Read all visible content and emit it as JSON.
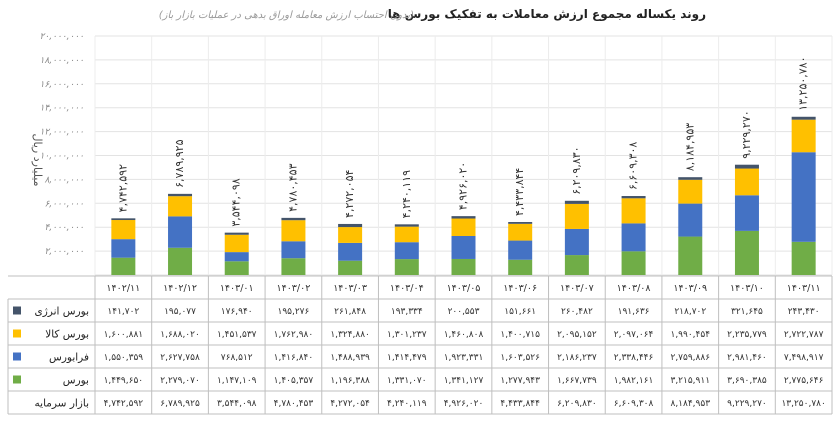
{
  "chart_data": {
    "type": "bar",
    "stacked": true,
    "title": "روند یکساله مجموع ارزش معاملات به تفکیک بورس ها",
    "subtitle": "(بدون احتساب ارزش معامله اوراق بدهی در عملیات بازار باز)",
    "ylabel": "میلیارد ریال",
    "xlabel": "",
    "ylim": [
      0,
      20000000
    ],
    "yticks": [
      0,
      2000000,
      4000000,
      6000000,
      8000000,
      10000000,
      12000000,
      14000000,
      16000000,
      18000000,
      20000000
    ],
    "ytick_labels": [
      "-",
      "۲,۰۰۰,۰۰۰",
      "۴,۰۰۰,۰۰۰",
      "۶,۰۰۰,۰۰۰",
      "۸,۰۰۰,۰۰۰",
      "۱۰,۰۰۰,۰۰۰",
      "۱۲,۰۰۰,۰۰۰",
      "۱۴,۰۰۰,۰۰۰",
      "۱۶,۰۰۰,۰۰۰",
      "۱۸,۰۰۰,۰۰۰",
      "۲۰,۰۰۰,۰۰۰"
    ],
    "grid": true,
    "legend_position": "table-left",
    "categories": [
      "۱۴۰۲/۱۱",
      "۱۴۰۲/۱۲",
      "۱۴۰۳/۰۱",
      "۱۴۰۳/۰۲",
      "۱۴۰۳/۰۳",
      "۱۴۰۳/۰۴",
      "۱۴۰۳/۰۵",
      "۱۴۰۳/۰۶",
      "۱۴۰۳/۰۷",
      "۱۴۰۳/۰۸",
      "۱۴۰۳/۰۹",
      "۱۴۰۳/۱۰",
      "۱۴۰۳/۱۱"
    ],
    "series": [
      {
        "name": "بورس",
        "color": "#70ad47",
        "values": [
          1449650,
          2279070,
          1147109,
          1405357,
          1196388,
          1331070,
          1341127,
          1277943,
          1667739,
          1982161,
          3215911,
          3690385,
          2775646
        ],
        "labels": [
          "۱,۴۴۹,۶۵۰",
          "۲,۲۷۹,۰۷۰",
          "۱,۱۴۷,۱۰۹",
          "۱,۴۰۵,۳۵۷",
          "۱,۱۹۶,۳۸۸",
          "۱,۳۳۱,۰۷۰",
          "۱,۳۴۱,۱۲۷",
          "۱,۲۷۷,۹۴۳",
          "۱,۶۶۷,۷۳۹",
          "۱,۹۸۲,۱۶۱",
          "۳,۲۱۵,۹۱۱",
          "۳,۶۹۰,۳۸۵",
          "۲,۷۷۵,۶۴۶"
        ]
      },
      {
        "name": "فرابورس",
        "color": "#4472c4",
        "values": [
          1550359,
          2627758,
          768512,
          1416840,
          1488939,
          1414479,
          1923331,
          1603526,
          2186237,
          2338446,
          2759886,
          2981460,
          7498917
        ],
        "labels": [
          "۱,۵۵۰,۳۵۹",
          "۲,۶۲۷,۷۵۸",
          "۷۶۸,۵۱۲",
          "۱,۴۱۶,۸۴۰",
          "۱,۴۸۸,۹۳۹",
          "۱,۴۱۴,۴۷۹",
          "۱,۹۲۳,۳۳۱",
          "۱,۶۰۳,۵۲۶",
          "۲,۱۸۶,۲۳۷",
          "۲,۳۳۸,۴۴۶",
          "۲,۷۵۹,۸۸۶",
          "۲,۹۸۱,۴۶۰",
          "۷,۴۹۸,۹۱۷"
        ]
      },
      {
        "name": "بورس کالا",
        "color": "#ffc000",
        "values": [
          1600881,
          1688020,
          1451537,
          1762980,
          1324880,
          1301237,
          1460808,
          1400715,
          2095152,
          2097064,
          1990454,
          2235779,
          2722787
        ],
        "labels": [
          "۱,۶۰۰,۸۸۱",
          "۱,۶۸۸,۰۲۰",
          "۱,۴۵۱,۵۳۷",
          "۱,۷۶۲,۹۸۰",
          "۱,۳۲۴,۸۸۰",
          "۱,۳۰۱,۲۳۷",
          "۱,۴۶۰,۸۰۸",
          "۱,۴۰۰,۷۱۵",
          "۲,۰۹۵,۱۵۲",
          "۲,۰۹۷,۰۶۴",
          "۱,۹۹۰,۴۵۴",
          "۲,۲۳۵,۷۷۹",
          "۲,۷۲۲,۷۸۷"
        ]
      },
      {
        "name": "بورس انرژی",
        "color": "#44546a",
        "values": [
          141702,
          195077,
          176940,
          195276,
          261848,
          193334,
          200553,
          151661,
          260482,
          191636,
          218702,
          321645,
          243430
        ],
        "labels": [
          "۱۴۱,۷۰۲",
          "۱۹۵,۰۷۷",
          "۱۷۶,۹۴۰",
          "۱۹۵,۲۷۶",
          "۲۶۱,۸۴۸",
          "۱۹۳,۳۳۴",
          "۲۰۰,۵۵۳",
          "۱۵۱,۶۶۱",
          "۲۶۰,۴۸۲",
          "۱۹۱,۶۳۶",
          "۲۱۸,۷۰۲",
          "۳۲۱,۶۴۵",
          "۲۴۳,۴۳۰"
        ]
      }
    ],
    "totals_name": "بازار سرمایه",
    "totals": [
      4742592,
      6789925,
      3544098,
      4780453,
      4272054,
      4240119,
      4926020,
      4433844,
      6209830,
      6609308,
      8184953,
      9229270,
      13250780
    ],
    "totals_labels": [
      "۴,۷۴۲,۵۹۲",
      "۶,۷۸۹,۹۲۵",
      "۳,۵۴۴,۰۹۸",
      "۴,۷۸۰,۴۵۳",
      "۴,۲۷۲,۰۵۴",
      "۴,۲۴۰,۱۱۹",
      "۴,۹۲۶,۰۲۰",
      "۴,۴۳۳,۸۴۴",
      "۶,۲۰۹,۸۳۰",
      "۶,۶۰۹,۳۰۸",
      "۸,۱۸۴,۹۵۳",
      "۹,۲۲۹,۲۷۰",
      "۱۳,۲۵۰,۷۸۰"
    ]
  }
}
